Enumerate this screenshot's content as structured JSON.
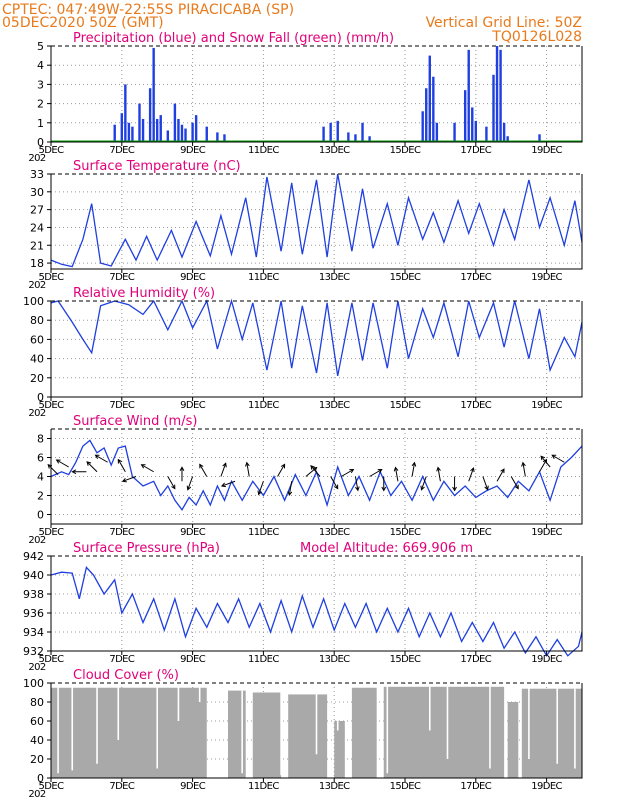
{
  "header": {
    "line1_left": "CPTEC:   047:49W-22:55S   PIRACICABA (SP)",
    "line2_left": "05DEC2020 50Z (GMT)",
    "line2_right": "Vertical Grid Line: 50Z",
    "line3_right": "TQ0126L028",
    "year_stub": "202"
  },
  "colors": {
    "header": "#e87a1c",
    "title": "#e0007a",
    "line": "#1f3fe0",
    "precip": "#1f3fe0",
    "snow": "#00a000",
    "cloud": "#a9a9a9",
    "arrow": "#000000"
  },
  "x_axis": {
    "ticks": [
      "5DEC",
      "7DEC",
      "9DEC",
      "11DEC",
      "13DEC",
      "15DEC",
      "17DEC",
      "19DEC"
    ],
    "xlim": [
      5,
      20
    ]
  },
  "chart_data": [
    {
      "id": "precip",
      "type": "bar",
      "title": "Precipitation (blue) and Snow Fall (green) (mm/h)",
      "ylim": [
        0,
        5
      ],
      "yticks": [
        0,
        1,
        2,
        3,
        4,
        5
      ],
      "series": [
        {
          "name": "Precipitation",
          "color": "#1f3fe0",
          "points": [
            [
              6.8,
              0.9
            ],
            [
              7.0,
              1.5
            ],
            [
              7.1,
              3.0
            ],
            [
              7.2,
              1.0
            ],
            [
              7.3,
              0.8
            ],
            [
              7.5,
              2.0
            ],
            [
              7.6,
              1.2
            ],
            [
              7.8,
              2.8
            ],
            [
              7.9,
              4.9
            ],
            [
              8.0,
              1.2
            ],
            [
              8.1,
              1.4
            ],
            [
              8.3,
              0.6
            ],
            [
              8.5,
              2.0
            ],
            [
              8.6,
              1.2
            ],
            [
              8.7,
              0.9
            ],
            [
              8.8,
              0.7
            ],
            [
              9.0,
              1.0
            ],
            [
              9.1,
              1.4
            ],
            [
              9.4,
              0.8
            ],
            [
              9.7,
              0.5
            ],
            [
              9.9,
              0.4
            ],
            [
              12.7,
              0.8
            ],
            [
              12.9,
              1.0
            ],
            [
              13.1,
              1.1
            ],
            [
              13.4,
              0.5
            ],
            [
              13.6,
              0.4
            ],
            [
              13.8,
              1.0
            ],
            [
              14.0,
              0.3
            ],
            [
              15.5,
              1.6
            ],
            [
              15.6,
              2.8
            ],
            [
              15.7,
              4.5
            ],
            [
              15.8,
              3.4
            ],
            [
              15.9,
              1.0
            ],
            [
              16.4,
              1.0
            ],
            [
              16.7,
              2.7
            ],
            [
              16.8,
              4.8
            ],
            [
              16.9,
              1.8
            ],
            [
              17.0,
              1.1
            ],
            [
              17.3,
              0.8
            ],
            [
              17.5,
              3.5
            ],
            [
              17.6,
              5.0
            ],
            [
              17.7,
              4.8
            ],
            [
              17.8,
              1.0
            ],
            [
              17.9,
              0.3
            ],
            [
              18.8,
              0.4
            ]
          ]
        }
      ],
      "snow_series": {
        "name": "Snow Fall",
        "color": "#00a000",
        "value": 0
      }
    },
    {
      "id": "temp",
      "type": "line",
      "title": "Surface Temperature (nC)",
      "ylim": [
        17,
        33
      ],
      "yticks": [
        18,
        21,
        24,
        27,
        30,
        33
      ],
      "series": [
        {
          "name": "Temperature",
          "color": "#1f3fe0",
          "x": [
            5.0,
            5.3,
            5.6,
            5.9,
            6.15,
            6.4,
            6.7,
            7.1,
            7.4,
            7.7,
            8.0,
            8.4,
            8.7,
            9.1,
            9.5,
            9.8,
            10.1,
            10.5,
            10.8,
            11.1,
            11.5,
            11.8,
            12.1,
            12.5,
            12.8,
            13.1,
            13.5,
            13.8,
            14.1,
            14.5,
            14.8,
            15.1,
            15.5,
            15.8,
            16.1,
            16.5,
            16.8,
            17.1,
            17.5,
            17.8,
            18.1,
            18.5,
            18.8,
            19.1,
            19.5,
            19.8,
            20.0
          ],
          "y": [
            18.5,
            17.8,
            17.4,
            22.0,
            28.0,
            18.0,
            17.5,
            22.0,
            18.5,
            22.5,
            18.5,
            23.5,
            19.0,
            25.0,
            19.2,
            26.0,
            19.5,
            29.0,
            19.0,
            32.5,
            20.0,
            31.5,
            19.5,
            32.0,
            19.0,
            33.0,
            20.0,
            30.5,
            20.5,
            28.0,
            21.0,
            29.0,
            22.0,
            26.5,
            21.5,
            28.5,
            23.0,
            28.0,
            21.0,
            27.0,
            22.0,
            32.0,
            24.0,
            29.0,
            21.0,
            28.5,
            21.5
          ]
        }
      ]
    },
    {
      "id": "rh",
      "type": "line",
      "title": "Relative Humidity (%)",
      "ylim": [
        0,
        100
      ],
      "yticks": [
        0,
        20,
        40,
        60,
        80,
        100
      ],
      "series": [
        {
          "name": "Relative Humidity",
          "color": "#1f3fe0",
          "x": [
            5.0,
            5.2,
            5.6,
            5.9,
            6.15,
            6.4,
            6.8,
            7.2,
            7.6,
            7.9,
            8.3,
            8.7,
            9.0,
            9.4,
            9.7,
            10.1,
            10.4,
            10.7,
            11.1,
            11.5,
            11.8,
            12.1,
            12.5,
            12.8,
            13.1,
            13.5,
            13.8,
            14.1,
            14.5,
            14.8,
            15.1,
            15.5,
            15.8,
            16.1,
            16.5,
            16.8,
            17.1,
            17.5,
            17.8,
            18.1,
            18.5,
            18.8,
            19.1,
            19.5,
            19.8,
            20.0
          ],
          "y": [
            98,
            100,
            78,
            60,
            46,
            95,
            100,
            96,
            86,
            100,
            70,
            100,
            72,
            100,
            50,
            100,
            60,
            98,
            28,
            100,
            30,
            95,
            25,
            98,
            22,
            98,
            38,
            98,
            30,
            100,
            40,
            92,
            62,
            98,
            42,
            100,
            62,
            98,
            52,
            100,
            40,
            92,
            28,
            62,
            42,
            78
          ]
        }
      ]
    },
    {
      "id": "wind",
      "type": "line",
      "title": "Surface Wind (m/s)",
      "ylim": [
        -1,
        9
      ],
      "yticks": [
        0,
        2,
        4,
        6,
        8
      ],
      "series": [
        {
          "name": "Wind Speed",
          "color": "#1f3fe0",
          "x": [
            5.0,
            5.3,
            5.5,
            5.7,
            5.9,
            6.1,
            6.3,
            6.5,
            6.7,
            6.9,
            7.1,
            7.3,
            7.6,
            7.9,
            8.1,
            8.3,
            8.5,
            8.7,
            8.9,
            9.1,
            9.3,
            9.5,
            9.7,
            9.9,
            10.1,
            10.4,
            10.7,
            11.0,
            11.3,
            11.6,
            11.9,
            12.2,
            12.5,
            12.8,
            13.1,
            13.4,
            13.7,
            14.0,
            14.3,
            14.6,
            14.9,
            15.2,
            15.5,
            15.8,
            16.1,
            16.4,
            16.7,
            17.0,
            17.3,
            17.6,
            17.9,
            18.2,
            18.5,
            18.8,
            19.1,
            19.4,
            19.7,
            20.0
          ],
          "y": [
            4.0,
            4.5,
            4.2,
            5.5,
            7.2,
            7.8,
            6.5,
            7.0,
            5.2,
            7.0,
            7.2,
            4.0,
            3.0,
            3.5,
            2.0,
            3.0,
            1.5,
            0.5,
            1.8,
            1.0,
            2.5,
            1.0,
            3.0,
            1.5,
            3.5,
            1.5,
            3.5,
            2.0,
            4.0,
            1.5,
            4.2,
            2.0,
            4.5,
            1.0,
            5.0,
            2.0,
            4.0,
            1.5,
            4.5,
            2.0,
            3.5,
            1.5,
            4.0,
            1.5,
            3.5,
            2.0,
            3.0,
            1.8,
            2.5,
            3.0,
            1.8,
            3.5,
            2.5,
            4.5,
            1.5,
            5.0,
            6.0,
            7.2
          ]
        }
      ],
      "vectors": [
        {
          "x": 5.2,
          "speed": 4.2,
          "dir_deg": 135
        },
        {
          "x": 5.5,
          "speed": 5.0,
          "dir_deg": 150
        },
        {
          "x": 6.0,
          "speed": 4.5,
          "dir_deg": 180
        },
        {
          "x": 6.3,
          "speed": 4.5,
          "dir_deg": 135
        },
        {
          "x": 6.6,
          "speed": 5.5,
          "dir_deg": 150
        },
        {
          "x": 7.1,
          "speed": 4.5,
          "dir_deg": 120
        },
        {
          "x": 7.4,
          "speed": 4.0,
          "dir_deg": 200
        },
        {
          "x": 7.9,
          "speed": 4.5,
          "dir_deg": 150
        },
        {
          "x": 8.3,
          "speed": 4.0,
          "dir_deg": 300
        },
        {
          "x": 8.7,
          "speed": 3.5,
          "dir_deg": 90
        },
        {
          "x": 9.0,
          "speed": 4.0,
          "dir_deg": 250
        },
        {
          "x": 9.4,
          "speed": 4.0,
          "dir_deg": 120
        },
        {
          "x": 9.8,
          "speed": 4.0,
          "dir_deg": 70
        },
        {
          "x": 10.2,
          "speed": 3.5,
          "dir_deg": 200
        },
        {
          "x": 10.6,
          "speed": 4.0,
          "dir_deg": 100
        },
        {
          "x": 11.0,
          "speed": 3.5,
          "dir_deg": 250
        },
        {
          "x": 11.4,
          "speed": 4.0,
          "dir_deg": 60
        },
        {
          "x": 11.8,
          "speed": 3.5,
          "dir_deg": 260
        },
        {
          "x": 12.2,
          "speed": 4.0,
          "dir_deg": 40
        },
        {
          "x": 12.6,
          "speed": 4.0,
          "dir_deg": 130
        },
        {
          "x": 12.9,
          "speed": 4.0,
          "dir_deg": 300
        },
        {
          "x": 13.2,
          "speed": 4.0,
          "dir_deg": 30
        },
        {
          "x": 13.6,
          "speed": 4.0,
          "dir_deg": 280
        },
        {
          "x": 14.0,
          "speed": 4.0,
          "dir_deg": 30
        },
        {
          "x": 14.4,
          "speed": 4.0,
          "dir_deg": 270
        },
        {
          "x": 14.8,
          "speed": 3.5,
          "dir_deg": 100
        },
        {
          "x": 15.2,
          "speed": 4.0,
          "dir_deg": 80
        },
        {
          "x": 15.6,
          "speed": 4.0,
          "dir_deg": 250
        },
        {
          "x": 16.0,
          "speed": 3.5,
          "dir_deg": 100
        },
        {
          "x": 16.4,
          "speed": 4.0,
          "dir_deg": 270
        },
        {
          "x": 16.8,
          "speed": 3.5,
          "dir_deg": 70
        },
        {
          "x": 17.2,
          "speed": 4.0,
          "dir_deg": 290
        },
        {
          "x": 17.6,
          "speed": 3.5,
          "dir_deg": 60
        },
        {
          "x": 18.0,
          "speed": 4.0,
          "dir_deg": 300
        },
        {
          "x": 18.4,
          "speed": 4.0,
          "dir_deg": 100
        },
        {
          "x": 18.8,
          "speed": 4.5,
          "dir_deg": 60
        },
        {
          "x": 19.1,
          "speed": 5.0,
          "dir_deg": 130
        },
        {
          "x": 19.5,
          "speed": 5.5,
          "dir_deg": 150
        }
      ]
    },
    {
      "id": "pressure",
      "type": "line",
      "title": "Surface Pressure (hPa)",
      "annotation": "Model Altitude: 669.906 m",
      "ylim": [
        932,
        942
      ],
      "yticks": [
        932,
        934,
        936,
        938,
        940,
        942
      ],
      "series": [
        {
          "name": "Pressure",
          "color": "#1f3fe0",
          "x": [
            5.0,
            5.3,
            5.6,
            5.8,
            6.0,
            6.2,
            6.5,
            6.8,
            7.0,
            7.3,
            7.6,
            7.9,
            8.2,
            8.5,
            8.8,
            9.1,
            9.4,
            9.7,
            10.0,
            10.3,
            10.6,
            10.9,
            11.2,
            11.5,
            11.8,
            12.1,
            12.4,
            12.7,
            13.0,
            13.3,
            13.6,
            13.9,
            14.2,
            14.5,
            14.8,
            15.1,
            15.4,
            15.7,
            16.0,
            16.3,
            16.6,
            16.9,
            17.2,
            17.5,
            17.8,
            18.1,
            18.4,
            18.7,
            19.0,
            19.3,
            19.6,
            19.9,
            20.0
          ],
          "y": [
            940.0,
            940.3,
            940.2,
            937.5,
            940.8,
            940.0,
            938.0,
            939.5,
            936.0,
            938.0,
            935.0,
            937.5,
            934.2,
            937.5,
            933.5,
            936.5,
            934.5,
            937.0,
            935.0,
            937.5,
            934.5,
            937.0,
            934.0,
            937.3,
            934.0,
            937.8,
            934.5,
            937.5,
            934.2,
            937.0,
            934.5,
            937.0,
            934.0,
            936.5,
            934.0,
            936.5,
            933.5,
            936.0,
            933.5,
            936.0,
            933.0,
            935.0,
            933.0,
            935.0,
            932.3,
            934.0,
            931.8,
            933.5,
            931.5,
            933.2,
            931.5,
            932.5,
            934.0
          ]
        }
      ]
    },
    {
      "id": "cloud",
      "type": "area",
      "title": "Cloud Cover (%)",
      "ylim": [
        0,
        100
      ],
      "yticks": [
        0,
        20,
        40,
        60,
        80,
        100
      ],
      "series": [
        {
          "name": "Cloud Cover",
          "color": "#a9a9a9",
          "segments": [
            [
              5.0,
              9.4,
              95
            ],
            [
              10.0,
              10.5,
              92
            ],
            [
              10.7,
              11.5,
              90
            ],
            [
              11.7,
              12.8,
              88
            ],
            [
              13.0,
              13.3,
              60
            ],
            [
              13.5,
              14.2,
              95
            ],
            [
              14.4,
              17.8,
              96
            ],
            [
              17.9,
              18.2,
              80
            ],
            [
              18.3,
              20.0,
              94
            ]
          ],
          "dips": [
            [
              5.2,
              5
            ],
            [
              5.6,
              8
            ],
            [
              6.3,
              15
            ],
            [
              6.9,
              40
            ],
            [
              8.0,
              10
            ],
            [
              8.6,
              60
            ],
            [
              9.2,
              80
            ],
            [
              10.4,
              5
            ],
            [
              11.5,
              3
            ],
            [
              12.5,
              25
            ],
            [
              13.1,
              50
            ],
            [
              14.5,
              5
            ],
            [
              15.7,
              50
            ],
            [
              16.2,
              20
            ],
            [
              17.4,
              10
            ],
            [
              18.5,
              20
            ],
            [
              19.3,
              15
            ],
            [
              19.8,
              10
            ]
          ]
        }
      ]
    }
  ]
}
